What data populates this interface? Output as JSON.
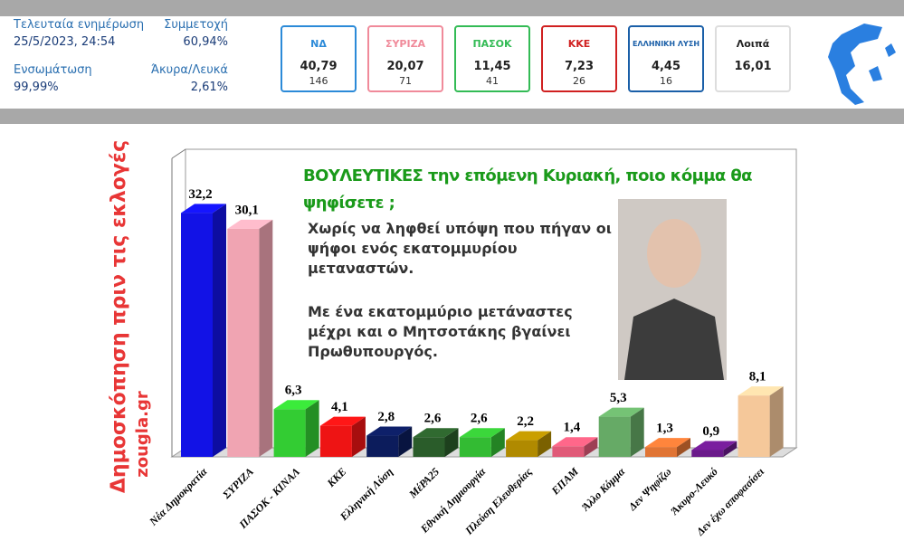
{
  "header": {
    "stats": [
      {
        "label": "Τελευταία ενημέρωση",
        "value": "25/5/2023, 24:54"
      },
      {
        "label": "Συμμετοχή",
        "value": "60,94%"
      },
      {
        "label": "Ενσωμάτωση",
        "value": "99,99%"
      },
      {
        "label": "Άκυρα/Λευκά",
        "value": "2,61%"
      }
    ],
    "cards": [
      {
        "logo": "ΝΔ",
        "percent": "40,79",
        "seats": "146",
        "color": "#2b8ad8"
      },
      {
        "logo": "ΣΥΡΙΖΑ",
        "percent": "20,07",
        "seats": "71",
        "color": "#f08a9a"
      },
      {
        "logo": "ΠΑΣΟΚ",
        "percent": "11,45",
        "seats": "41",
        "color": "#33bb55"
      },
      {
        "logo": "ΚΚΕ",
        "percent": "7,23",
        "seats": "26",
        "color": "#d02020"
      },
      {
        "logo": "ΕΛΛΗΝΙΚΗ ΛΥΣΗ",
        "percent": "4,45",
        "seats": "16",
        "color": "#1a5fa8"
      },
      {
        "logo": "Λοιπά",
        "percent": "16,01",
        "color": "#dddddd"
      }
    ]
  },
  "chart_data": {
    "type": "bar",
    "title": "ΒΟΥΛΕΥΤΙΚΕΣ  την επόμενη Κυριακή, ποιο κόμμα θα ψηφίσετε ;",
    "annotations": [
      "Χωρίς να ληφθεί υπόψη που πήγαν οι ψήφοι ενός εκατομμυρίου μεταναστών.",
      "Με ένα εκατομμύριο μετάναστες μέχρι και ο Μητσοτάκης βγαίνει Πρωθυπουργός."
    ],
    "side_labels": [
      "Δημοσκόπηση πριν τις εκλογές",
      "zougla.gr"
    ],
    "categories": [
      "Νέα Δημοκρατία",
      "ΣΥΡΙΖΑ",
      "ΠΑΣΟΚ - ΚΙΝΑΛ",
      "ΚΚΕ",
      "Ελληνική Λύση",
      "ΜέΡΑ25",
      "Εθνική Δημιουργία",
      "Πλεύση Ελευθερίας",
      "ΕΠΑΜ",
      "Άλλο Κόμμα",
      "Δεν Ψηφίζω",
      "Άκυρο-Λευκό",
      "Δεν έχω αποφασίσει"
    ],
    "values": [
      32.2,
      30.1,
      6.3,
      4.1,
      2.8,
      2.6,
      2.6,
      2.2,
      1.4,
      5.3,
      1.3,
      0.9,
      8.1
    ],
    "value_labels": [
      "32,2",
      "30,1",
      "6,3",
      "4,1",
      "2,8",
      "2,6",
      "2,6",
      "2,2",
      "1,4",
      "5,3",
      "1,3",
      "0,9",
      "8,1"
    ],
    "colors": [
      "#1212e6",
      "#f0a4b2",
      "#33cc33",
      "#ee1414",
      "#0c1c5c",
      "#2a5c2a",
      "#33bb33",
      "#b08a00",
      "#e05a78",
      "#66aa66",
      "#e07434",
      "#6a1a8a",
      "#f5c89a"
    ],
    "ylim": [
      0,
      40
    ]
  }
}
